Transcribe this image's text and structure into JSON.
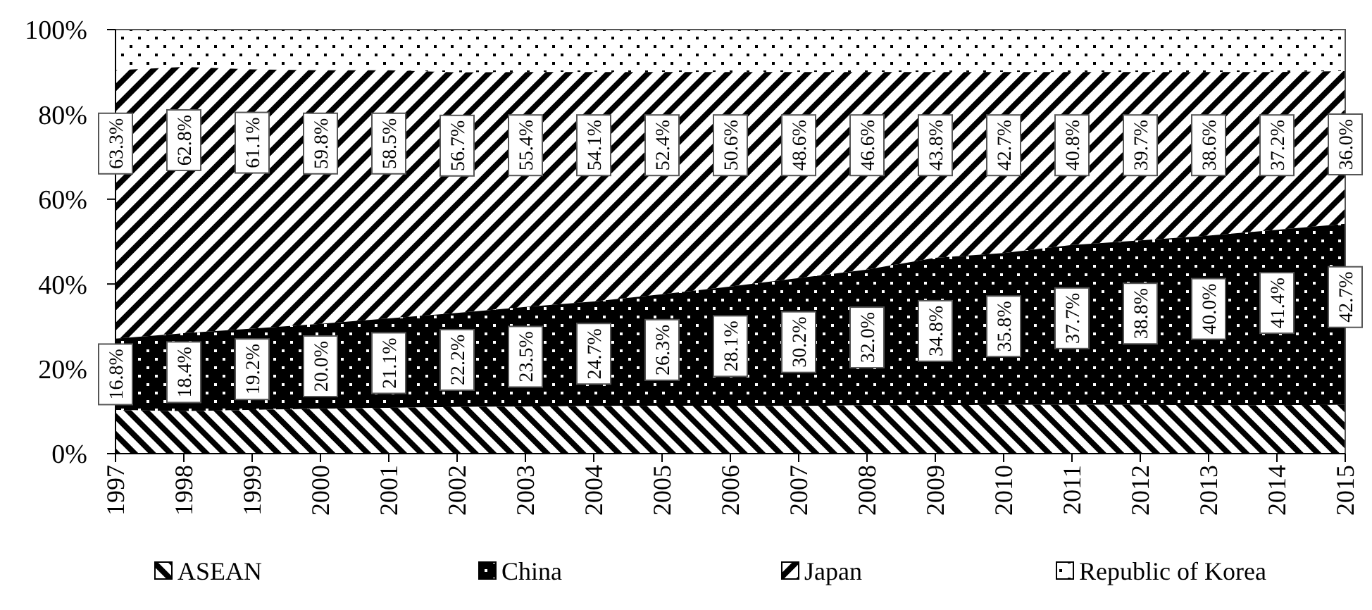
{
  "chart_data": {
    "type": "area",
    "stacked": true,
    "categories": [
      "1997",
      "1998",
      "1999",
      "2000",
      "2001",
      "2002",
      "2003",
      "2004",
      "2005",
      "2006",
      "2007",
      "2008",
      "2009",
      "2010",
      "2011",
      "2012",
      "2013",
      "2014",
      "2015"
    ],
    "ylim": [
      0,
      100
    ],
    "yticks": [
      {
        "value": 0,
        "label": "0%"
      },
      {
        "value": 20,
        "label": "20%"
      },
      {
        "value": 40,
        "label": "40%"
      },
      {
        "value": 60,
        "label": "60%"
      },
      {
        "value": 80,
        "label": "80%"
      },
      {
        "value": 100,
        "label": "100%"
      }
    ],
    "legend": "bottom",
    "series": [
      {
        "name": "ASEAN",
        "color": "#000000",
        "values": [
          10.3,
          10.0,
          10.3,
          10.6,
          10.8,
          11.0,
          11.1,
          11.2,
          11.3,
          11.3,
          11.2,
          11.4,
          11.4,
          11.5,
          11.5,
          11.5,
          11.4,
          11.4,
          11.5
        ]
      },
      {
        "name": "China",
        "color": "#000000",
        "values": [
          16.8,
          18.4,
          19.2,
          20.0,
          21.1,
          22.2,
          23.5,
          24.7,
          26.3,
          28.1,
          30.2,
          32.0,
          34.8,
          35.8,
          37.7,
          38.8,
          40.0,
          41.4,
          42.7
        ],
        "value_labels": [
          "16.8%",
          "18.4%",
          "19.2%",
          "20.0%",
          "21.1%",
          "22.2%",
          "23.5%",
          "24.7%",
          "26.3%",
          "28.1%",
          "30.2%",
          "32.0%",
          "34.8%",
          "35.8%",
          "37.7%",
          "38.8%",
          "40.0%",
          "41.4%",
          "42.7%"
        ]
      },
      {
        "name": "Japan",
        "color": "#000000",
        "values": [
          63.3,
          62.8,
          61.1,
          59.8,
          58.5,
          56.7,
          55.4,
          54.1,
          52.4,
          50.6,
          48.6,
          46.6,
          43.8,
          42.7,
          40.8,
          39.7,
          38.6,
          37.2,
          36.0
        ],
        "value_labels": [
          "63.3%",
          "62.8%",
          "61.1%",
          "59.8%",
          "58.5%",
          "56.7%",
          "55.4%",
          "54.1%",
          "52.4%",
          "50.6%",
          "48.6%",
          "46.6%",
          "43.8%",
          "42.7%",
          "40.8%",
          "39.7%",
          "38.6%",
          "37.2%",
          "36.0%"
        ]
      },
      {
        "name": "Republic of Korea",
        "color": "#000000",
        "values": [
          9.6,
          8.8,
          9.4,
          9.6,
          9.6,
          10.1,
          10.0,
          10.0,
          10.0,
          10.0,
          10.0,
          10.0,
          10.0,
          10.0,
          10.0,
          10.0,
          10.0,
          10.0,
          9.8
        ]
      }
    ]
  }
}
